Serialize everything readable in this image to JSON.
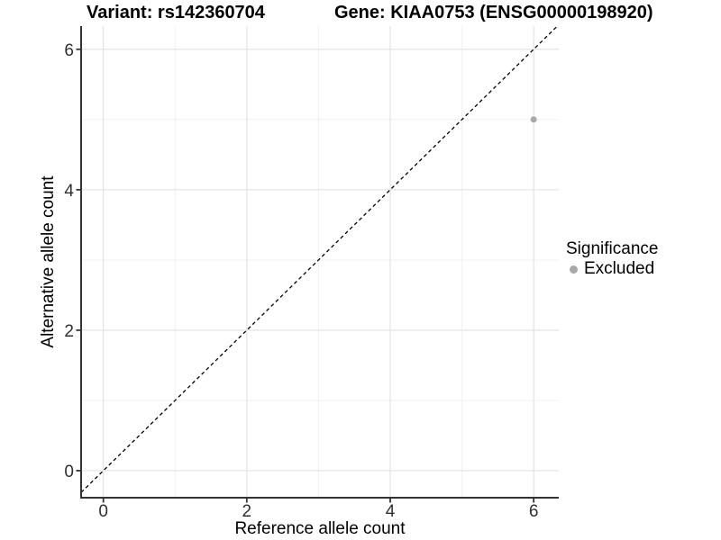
{
  "header": {
    "variant_title": "Variant: rs142360704",
    "gene_title": "Gene: KIAA0753 (ENSG00000198920)"
  },
  "legend": {
    "title": "Significance",
    "items": [
      {
        "label": "Excluded",
        "color": "#a9a9a9"
      }
    ]
  },
  "chart_data": {
    "type": "scatter",
    "title": "Variant: rs142360704    Gene: KIAA0753 (ENSG00000198920)",
    "xlabel": "Reference allele count",
    "ylabel": "Alternative allele count",
    "xlim": [
      -0.31,
      6.35
    ],
    "ylim": [
      -0.385,
      6.33
    ],
    "x_ticks": [
      0,
      2,
      4,
      6
    ],
    "y_ticks": [
      0,
      2,
      4,
      6
    ],
    "x_minor_ticks": [
      1,
      3,
      5
    ],
    "y_minor_ticks": [
      1,
      3,
      5
    ],
    "grid": true,
    "legend_position": "right",
    "legend_title": "Significance",
    "series": [
      {
        "name": "Excluded",
        "color": "#a9a9a9",
        "points": [
          {
            "x": 6,
            "y": 5
          }
        ]
      }
    ],
    "reference_line": {
      "kind": "identity",
      "style": "dashed",
      "color": "#000000"
    }
  },
  "colors": {
    "background": "#ffffff",
    "grid_major": "#e3e3e3",
    "grid_minor": "#f0f0f0",
    "axis_line": "#333333",
    "tick_label": "#303030",
    "point": "#a9a9a9",
    "dashed_line": "#000000"
  }
}
